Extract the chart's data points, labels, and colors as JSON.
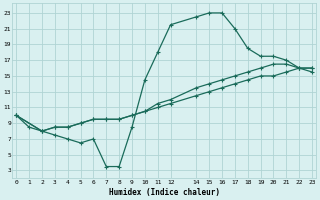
{
  "line1_x": [
    0,
    1,
    2,
    3,
    4,
    5,
    6,
    7,
    8,
    9,
    10,
    11,
    12,
    14,
    15,
    16,
    17,
    18,
    19,
    20,
    21,
    22,
    23
  ],
  "line1_y": [
    10,
    8.5,
    8,
    7.5,
    7,
    6.5,
    7,
    3.5,
    3.5,
    8.5,
    14.5,
    18,
    21.5,
    22.5,
    23,
    23,
    21,
    18.5,
    17.5,
    17.5,
    17,
    16,
    15.5
  ],
  "line2_x": [
    0,
    2,
    3,
    4,
    5,
    6,
    7,
    8,
    9,
    10,
    11,
    12,
    14,
    15,
    16,
    17,
    18,
    19,
    20,
    21,
    22,
    23
  ],
  "line2_y": [
    10,
    8,
    8.5,
    8.5,
    9,
    9.5,
    9.5,
    9.5,
    10,
    10.5,
    11,
    11.5,
    12.5,
    13,
    13.5,
    14,
    14.5,
    15,
    15,
    15.5,
    16,
    16
  ],
  "line3_x": [
    0,
    2,
    3,
    4,
    5,
    6,
    7,
    8,
    9,
    10,
    11,
    12,
    14,
    15,
    16,
    17,
    18,
    19,
    20,
    21,
    22,
    23
  ],
  "line3_y": [
    10,
    8,
    8.5,
    8.5,
    9,
    9.5,
    9.5,
    9.5,
    10,
    10.5,
    11.5,
    12,
    13.5,
    14,
    14.5,
    15,
    15.5,
    16,
    16.5,
    16.5,
    16,
    16
  ],
  "line_color": "#1a6b5a",
  "bg_color": "#d9f0f0",
  "grid_color": "#b0d4d4",
  "xlabel": "Humidex (Indice chaleur)",
  "yticks": [
    3,
    5,
    7,
    9,
    11,
    13,
    15,
    17,
    19,
    21,
    23
  ],
  "xticks": [
    0,
    1,
    2,
    3,
    4,
    5,
    6,
    7,
    8,
    9,
    10,
    11,
    12,
    14,
    15,
    16,
    17,
    18,
    19,
    20,
    21,
    22,
    23
  ],
  "xlim": [
    -0.3,
    23.3
  ],
  "ylim": [
    2,
    24.2
  ]
}
